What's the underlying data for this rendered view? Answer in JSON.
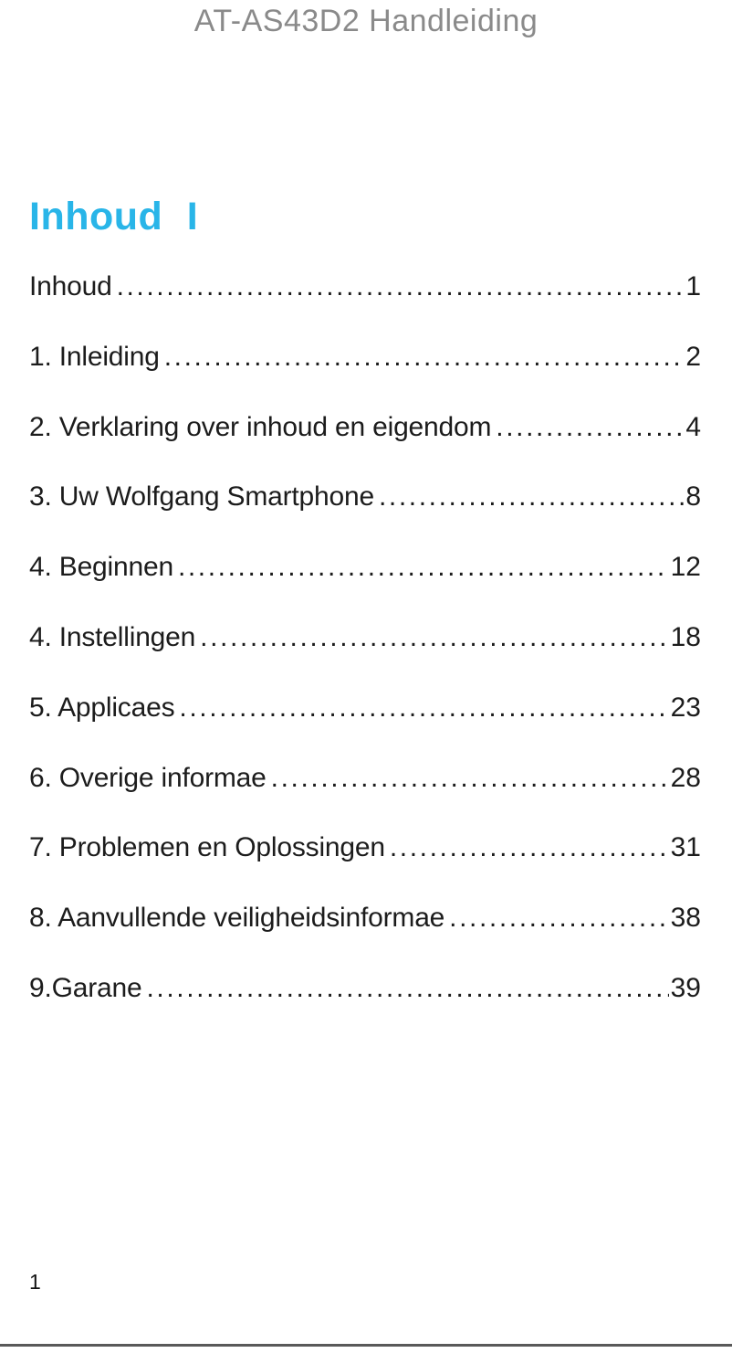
{
  "page": {
    "header_title": "AT-AS43D2 Handleiding",
    "section_heading": "Inhoud I",
    "footer_page_number": "1"
  },
  "colors": {
    "heading_cyan": "#29b5e8",
    "header_gray": "#8a8a8a",
    "body_text": "#1c1c1c",
    "divider_gray": "#595959"
  },
  "toc": {
    "entries": [
      {
        "label": "Inhoud",
        "page": "1"
      },
      {
        "label": "1. Inleiding",
        "page": "2"
      },
      {
        "label": "2. Verklaring over inhoud en eigendom",
        "page": "4"
      },
      {
        "label": "3. Uw Wolfgang Smartphone",
        "page": "8"
      },
      {
        "label": "4. Beginnen",
        "page": "12"
      },
      {
        "label": "4. Instellingen",
        "page": "18"
      },
      {
        "label": "5. Applicaes",
        "page": "23"
      },
      {
        "label": "6. Overige informae",
        "page": "28"
      },
      {
        "label": "7. Problemen en Oplossingen",
        "page": "31"
      },
      {
        "label": "8. Aanvullende veiligheidsinformae",
        "page": "38"
      },
      {
        "label": "9.Garane",
        "page": "39"
      }
    ]
  }
}
